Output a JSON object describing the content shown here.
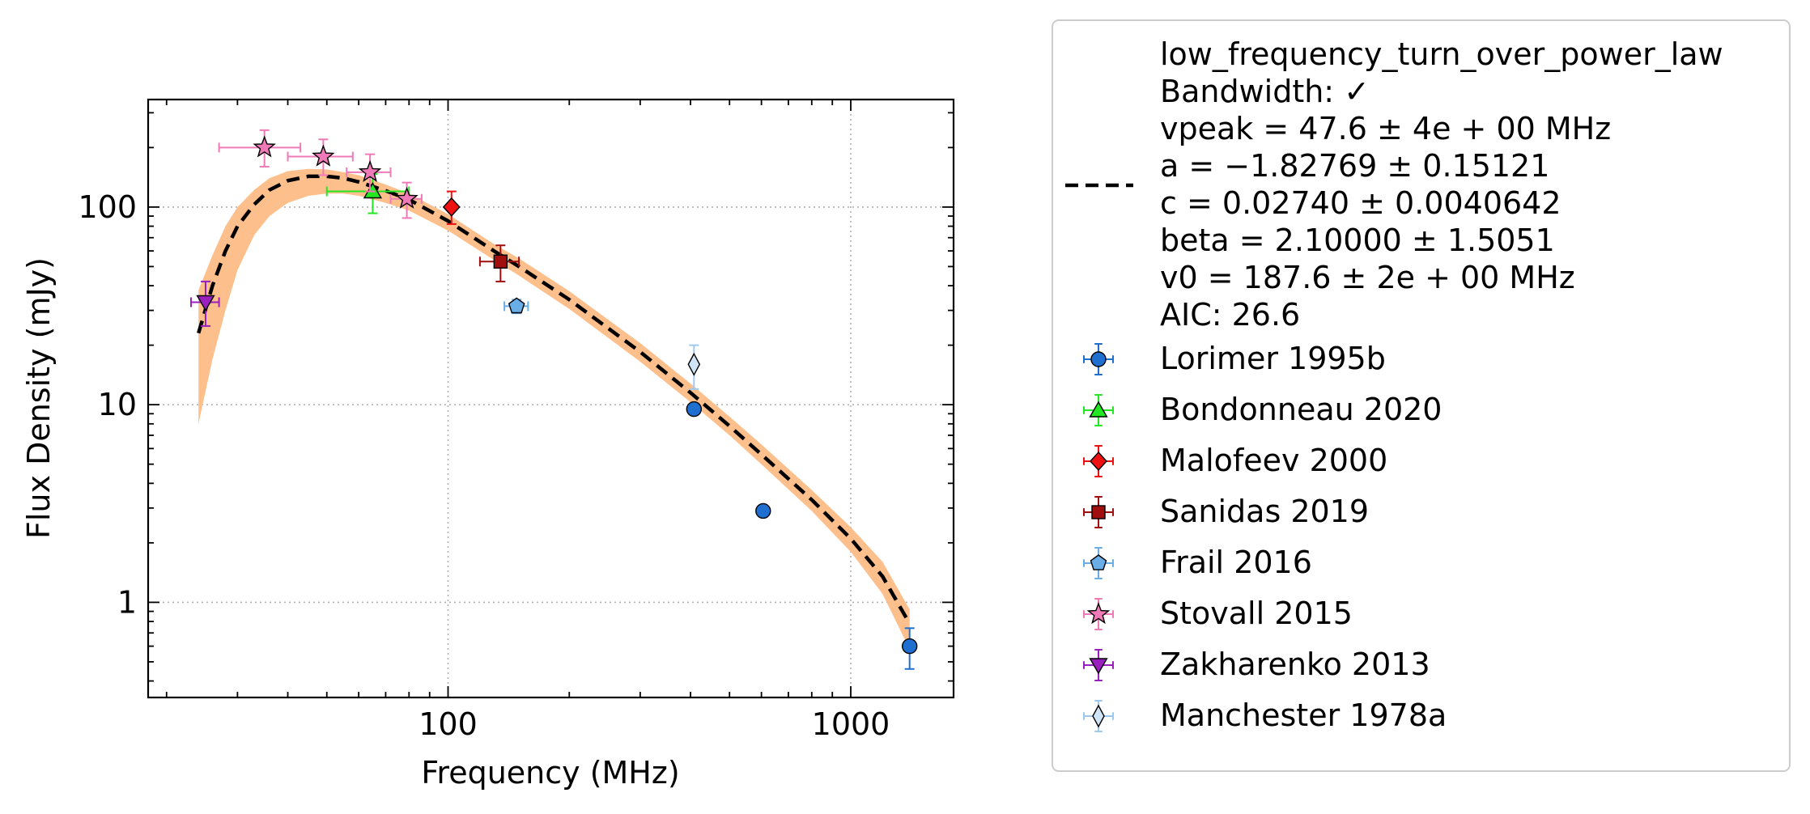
{
  "chart_data": {
    "type": "scatter",
    "title": "",
    "xlabel": "Frequency (MHz)",
    "ylabel": "Flux Density (mJy)",
    "xscale": "log",
    "yscale": "log",
    "xlim": [
      18,
      1800
    ],
    "ylim": [
      0.33,
      350
    ],
    "grid": true,
    "legend_position": "outside-right",
    "xticks": [
      {
        "value": 100,
        "label": "100"
      },
      {
        "value": 1000,
        "label": "1000"
      }
    ],
    "yticks": [
      {
        "value": 1,
        "label": "1"
      },
      {
        "value": 10,
        "label": "10"
      },
      {
        "value": 100,
        "label": "100"
      }
    ],
    "fit": {
      "name": "low_frequency_turn_over_power_law",
      "legend_lines": [
        "low_frequency_turn_over_power_law",
        "Bandwidth: ✓",
        "vpeak = 47.6 ± 4e + 00 MHz",
        "a = −1.82769 ± 0.15121",
        "c = 0.02740 ± 0.0040642",
        "beta = 2.10000 ± 1.5051",
        "v0 = 187.6 ± 2e + 00 MHz",
        "AIC: 26.6"
      ],
      "color": "#000000",
      "band_color": "#fdbf8b",
      "x_range": [
        24,
        1400
      ],
      "curve": [
        [
          24,
          23
        ],
        [
          26,
          40
        ],
        [
          28,
          60
        ],
        [
          30,
          80
        ],
        [
          33,
          103
        ],
        [
          36,
          122
        ],
        [
          40,
          136
        ],
        [
          45,
          143
        ],
        [
          50,
          143
        ],
        [
          55,
          140
        ],
        [
          60,
          134
        ],
        [
          70,
          121
        ],
        [
          80,
          109
        ],
        [
          100,
          85
        ],
        [
          130,
          60
        ],
        [
          150,
          50
        ],
        [
          200,
          34
        ],
        [
          300,
          18.5
        ],
        [
          400,
          11.5
        ],
        [
          500,
          7.8
        ],
        [
          600,
          5.6
        ],
        [
          800,
          3.3
        ],
        [
          1000,
          2.1
        ],
        [
          1200,
          1.35
        ],
        [
          1400,
          0.78
        ]
      ],
      "band": [
        [
          24,
          8,
          38
        ],
        [
          26,
          17,
          57
        ],
        [
          28,
          30,
          80
        ],
        [
          30,
          48,
          100
        ],
        [
          33,
          72,
          122
        ],
        [
          36,
          90,
          140
        ],
        [
          40,
          105,
          152
        ],
        [
          45,
          114,
          156
        ],
        [
          50,
          117,
          155
        ],
        [
          55,
          117,
          150
        ],
        [
          60,
          114,
          145
        ],
        [
          70,
          105,
          130
        ],
        [
          80,
          96,
          117
        ],
        [
          100,
          76,
          92
        ],
        [
          130,
          54,
          65
        ],
        [
          150,
          45,
          55
        ],
        [
          200,
          30.5,
          37.5
        ],
        [
          300,
          16.5,
          20.5
        ],
        [
          400,
          10.3,
          12.8
        ],
        [
          500,
          7,
          8.7
        ],
        [
          600,
          5,
          6.3
        ],
        [
          800,
          2.9,
          3.7
        ],
        [
          1000,
          1.8,
          2.4
        ],
        [
          1200,
          1.1,
          1.6
        ],
        [
          1400,
          0.58,
          0.92
        ]
      ]
    },
    "series": [
      {
        "name": "Lorimer 1995b",
        "marker": "circle",
        "face": "#1f6fd1",
        "ecolor": "#1f6fd1",
        "points": [
          {
            "x": 408,
            "y": 9.5
          },
          {
            "x": 606,
            "y": 2.9
          },
          {
            "x": 1400,
            "y": 0.6,
            "y_lo": 0.46,
            "y_hi": 0.74
          }
        ]
      },
      {
        "name": "Bondonneau 2020",
        "marker": "triangle-up",
        "face": "#22e822",
        "ecolor": "#22e822",
        "points": [
          {
            "x": 65,
            "y": 120,
            "y_lo": 93,
            "y_hi": 147,
            "x_lo": 50,
            "x_hi": 80
          }
        ]
      },
      {
        "name": "Malofeev 2000",
        "marker": "diamond",
        "face": "#ee1111",
        "ecolor": "#ee1111",
        "points": [
          {
            "x": 102,
            "y": 100,
            "y_lo": 82,
            "y_hi": 120
          }
        ]
      },
      {
        "name": "Sanidas 2019",
        "marker": "square",
        "face": "#a00e0e",
        "ecolor": "#a00e0e",
        "points": [
          {
            "x": 135,
            "y": 53,
            "y_lo": 42,
            "y_hi": 64,
            "x_lo": 120,
            "x_hi": 150
          }
        ]
      },
      {
        "name": "Frail 2016",
        "marker": "pentagon",
        "face": "#6aaee8",
        "ecolor": "#6aaee8",
        "points": [
          {
            "x": 148,
            "y": 31.5,
            "y_lo": 29,
            "y_hi": 34,
            "x_lo": 138,
            "x_hi": 158
          }
        ]
      },
      {
        "name": "Stovall 2015",
        "marker": "star",
        "face": "#f07ab8",
        "ecolor": "#f07ab8",
        "points": [
          {
            "x": 35,
            "y": 200,
            "y_lo": 160,
            "y_hi": 245,
            "x_lo": 27,
            "x_hi": 43
          },
          {
            "x": 49,
            "y": 180,
            "y_lo": 145,
            "y_hi": 220,
            "x_lo": 40,
            "x_hi": 58
          },
          {
            "x": 64,
            "y": 150,
            "y_lo": 120,
            "y_hi": 185,
            "x_lo": 56,
            "x_hi": 72
          },
          {
            "x": 79,
            "y": 110,
            "y_lo": 88,
            "y_hi": 133,
            "x_lo": 72,
            "x_hi": 86
          }
        ]
      },
      {
        "name": "Zakharenko 2013",
        "marker": "triangle-down",
        "face": "#9b1fbf",
        "ecolor": "#9b1fbf",
        "points": [
          {
            "x": 25,
            "y": 33,
            "y_lo": 25,
            "y_hi": 42,
            "x_lo": 23,
            "x_hi": 27
          }
        ]
      },
      {
        "name": "Manchester 1978a",
        "marker": "thin-diamond",
        "face": "#cfe4f7",
        "ecolor": "#9ec9ee",
        "points": [
          {
            "x": 408,
            "y": 16,
            "y_lo": 12,
            "y_hi": 20
          }
        ]
      }
    ]
  }
}
